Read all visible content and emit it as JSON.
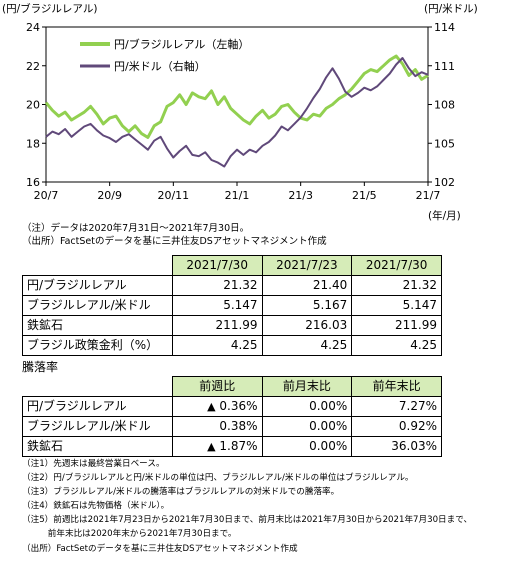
{
  "chart_data": {
    "type": "line",
    "left_axis_title": "(円/ブラジルレアル)",
    "right_axis_title": "(円/米ドル)",
    "x_unit_label": "(年/月)",
    "x_ticks": [
      "20/7",
      "20/9",
      "20/11",
      "21/1",
      "21/3",
      "21/5",
      "21/7"
    ],
    "y_left": {
      "min": 16,
      "max": 24,
      "ticks": [
        "16",
        "18",
        "20",
        "22",
        "24"
      ]
    },
    "y_right": {
      "min": 102,
      "max": 114,
      "ticks": [
        "102",
        "105",
        "108",
        "111",
        "114"
      ]
    },
    "series": [
      {
        "name": "円/ブラジルレアル（左軸）",
        "axis": "left",
        "color": "#92d050",
        "x_months": [
          0,
          0.2,
          0.4,
          0.6,
          0.8,
          1.0,
          1.2,
          1.4,
          1.6,
          1.8,
          2.0,
          2.2,
          2.4,
          2.6,
          2.8,
          3.0,
          3.2,
          3.4,
          3.6,
          3.8,
          4.0,
          4.2,
          4.4,
          4.6,
          4.8,
          5.0,
          5.2,
          5.4,
          5.6,
          5.8,
          6.0,
          6.2,
          6.4,
          6.6,
          6.8,
          7.0,
          7.2,
          7.4,
          7.6,
          7.8,
          8.0,
          8.2,
          8.4,
          8.6,
          8.8,
          9.0,
          9.2,
          9.4,
          9.6,
          9.8,
          10.0,
          10.2,
          10.4,
          10.6,
          10.8,
          11.0,
          11.2,
          11.4,
          11.6,
          11.8,
          12.0
        ],
        "values": [
          20.1,
          19.7,
          19.4,
          19.6,
          19.2,
          19.4,
          19.6,
          19.9,
          19.5,
          19.0,
          19.3,
          19.4,
          18.9,
          18.6,
          18.9,
          18.5,
          18.3,
          18.9,
          19.1,
          19.9,
          20.1,
          20.5,
          20.0,
          20.6,
          20.4,
          20.3,
          20.7,
          20.0,
          20.4,
          19.8,
          19.5,
          19.2,
          19.0,
          19.4,
          19.7,
          19.3,
          19.5,
          19.9,
          20.0,
          19.6,
          19.3,
          19.2,
          19.5,
          19.4,
          19.8,
          20.0,
          20.3,
          20.5,
          20.8,
          21.2,
          21.6,
          21.8,
          21.7,
          22.0,
          22.3,
          22.5,
          22.1,
          21.5,
          21.8,
          21.3,
          21.5
        ]
      },
      {
        "name": "円/米ドル（右軸）",
        "axis": "right",
        "color": "#60497a",
        "x_months": [
          0,
          0.2,
          0.4,
          0.6,
          0.8,
          1.0,
          1.2,
          1.4,
          1.6,
          1.8,
          2.0,
          2.2,
          2.4,
          2.6,
          2.8,
          3.0,
          3.2,
          3.4,
          3.6,
          3.8,
          4.0,
          4.2,
          4.4,
          4.6,
          4.8,
          5.0,
          5.2,
          5.4,
          5.6,
          5.8,
          6.0,
          6.2,
          6.4,
          6.6,
          6.8,
          7.0,
          7.2,
          7.4,
          7.6,
          7.8,
          8.0,
          8.2,
          8.4,
          8.6,
          8.8,
          9.0,
          9.2,
          9.4,
          9.6,
          9.8,
          10.0,
          10.2,
          10.4,
          10.6,
          10.8,
          11.0,
          11.2,
          11.4,
          11.6,
          11.8,
          12.0
        ],
        "values": [
          105.5,
          105.9,
          105.7,
          106.1,
          105.5,
          105.9,
          106.3,
          106.5,
          106.0,
          105.6,
          105.4,
          105.1,
          105.5,
          105.7,
          105.3,
          104.9,
          104.5,
          105.2,
          105.5,
          104.6,
          103.9,
          104.4,
          104.8,
          104.1,
          104.0,
          104.3,
          103.7,
          103.5,
          103.2,
          104.0,
          104.5,
          104.1,
          104.5,
          104.3,
          104.8,
          105.1,
          105.6,
          106.3,
          106.0,
          106.5,
          107.0,
          107.7,
          108.5,
          109.2,
          110.1,
          110.8,
          110.0,
          109.0,
          108.6,
          108.9,
          109.3,
          109.1,
          109.4,
          109.9,
          110.4,
          111.1,
          111.6,
          110.8,
          110.2,
          110.5,
          110.3
        ]
      }
    ],
    "legend": "top-left",
    "grid": false
  },
  "notes_chart": [
    "（注）データは2020年7月31日～2021年7月30日。",
    "（出所）FactSetのデータを基に三井住友DSアセットマネジメント作成"
  ],
  "table1": {
    "headers": [
      "",
      "2021/7/30",
      "2021/7/23",
      "2021/7/30"
    ],
    "rows": [
      {
        "label": "円/ブラジルレアル",
        "values": [
          "21.32",
          "21.40",
          "21.32"
        ]
      },
      {
        "label": "ブラジルレアル/米ドル",
        "values": [
          "5.147",
          "5.167",
          "5.147"
        ]
      },
      {
        "label": "鉄鉱石",
        "values": [
          "211.99",
          "216.03",
          "211.99"
        ]
      },
      {
        "label": "ブラジル政策金利（%）",
        "values": [
          "4.25",
          "4.25",
          "4.25"
        ]
      }
    ]
  },
  "table2": {
    "title": "騰落率",
    "headers": [
      "",
      "前週比",
      "前月末比",
      "前年末比"
    ],
    "rows": [
      {
        "label": "円/ブラジルレアル",
        "values": [
          {
            "mark": "▲",
            "num": "0.36%"
          },
          {
            "mark": "",
            "num": "0.00%"
          },
          {
            "mark": "",
            "num": "7.27%"
          }
        ]
      },
      {
        "label": "ブラジルレアル/米ドル",
        "values": [
          {
            "mark": "",
            "num": "0.38%"
          },
          {
            "mark": "",
            "num": "0.00%"
          },
          {
            "mark": "",
            "num": "0.92%"
          }
        ]
      },
      {
        "label": "鉄鉱石",
        "values": [
          {
            "mark": "▲",
            "num": "1.87%"
          },
          {
            "mark": "",
            "num": "0.00%"
          },
          {
            "mark": "",
            "num": "36.03%"
          }
        ]
      }
    ]
  },
  "notes_bottom": [
    "（注1）先週末は最終営業日ベース。",
    "（注2）円/ブラジルレアルと円/米ドルの単位は円、ブラジルレアル/米ドルの単位はブラジルレアル。",
    "（注3）ブラジルレアル/米ドルの騰落率はブラジルレアルの対米ドルでの騰落率。",
    "（注4）鉄鉱石は先物価格（米ドル）。",
    "（注5）前週比は2021年7月23日から2021年7月30日まで、前月末比は2021年7月30日から2021年7月30日まで、",
    "　　　前年末比は2020年末から2021年7月30日まで。",
    "（出所）FactSetのデータを基に三井住友DSアセットマネジメント作成"
  ]
}
